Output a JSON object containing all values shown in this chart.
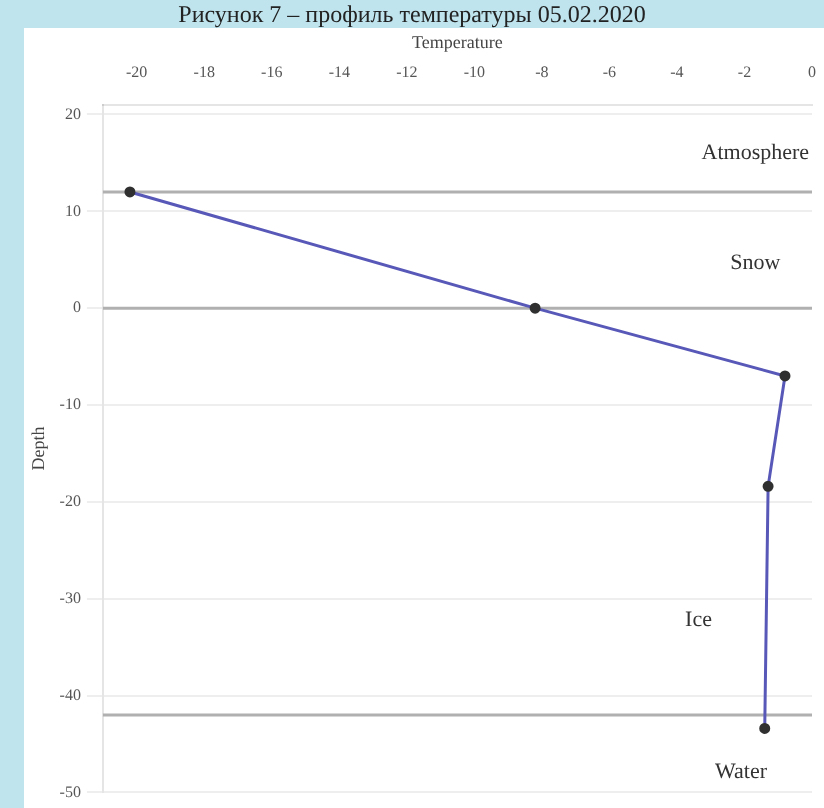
{
  "chart_data": {
    "type": "line",
    "title": "Рисунок 7 – профиль температуры 05.02.2020",
    "xlabel": "Temperature",
    "ylabel": "Depth",
    "xlim": [
      -21,
      0
    ],
    "xticks": [
      -20,
      -18,
      -16,
      -14,
      -12,
      -10,
      -8,
      -6,
      -4,
      -2,
      0
    ],
    "ylim": [
      -50,
      21
    ],
    "yticks": [
      -50,
      -40,
      -30,
      -20,
      -10,
      0,
      10,
      20
    ],
    "grid": "y",
    "marker": "circle",
    "line_style": "solid",
    "legend": false,
    "series": [
      {
        "color": "#5858b8",
        "x": [
          -20.2,
          -8.2,
          -0.8,
          -1.3,
          -1.4
        ],
        "values": [
          12,
          0,
          -7,
          -18.4,
          -43.4
        ]
      }
    ],
    "ref_lines": [
      {
        "axis": "y",
        "value": 12,
        "color": "#b0b0b0"
      },
      {
        "axis": "y",
        "value": 0,
        "color": "#b0b0b0"
      },
      {
        "axis": "y",
        "value": -42,
        "color": "#b0b0b0"
      }
    ],
    "annotations": [
      "Atmosphere",
      "Snow",
      "Ice",
      "Water"
    ]
  }
}
